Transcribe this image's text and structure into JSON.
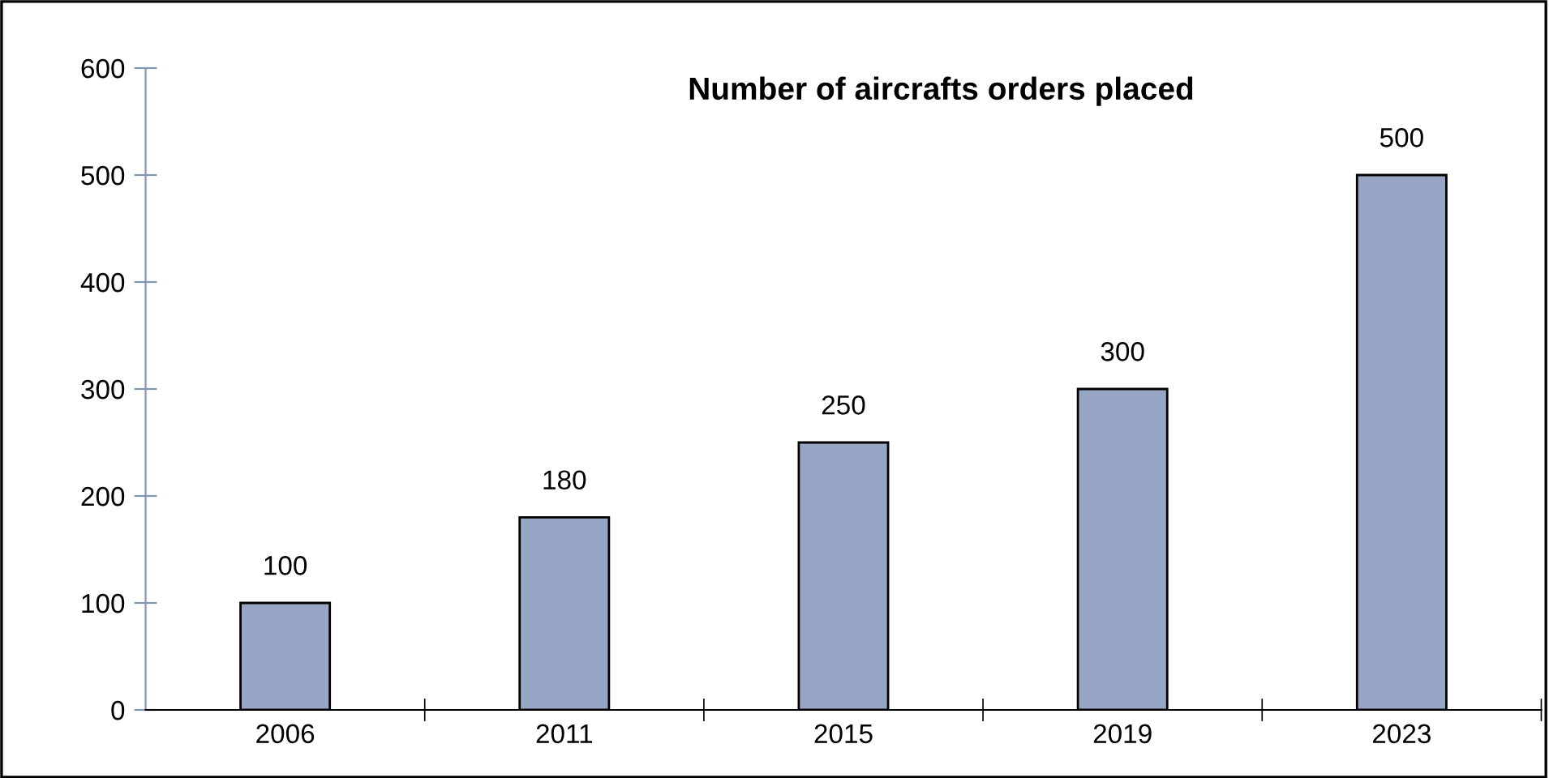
{
  "chart_data": {
    "type": "bar",
    "title": "Number of aircrafts orders placed",
    "categories": [
      "2006",
      "2011",
      "2015",
      "2019",
      "2023"
    ],
    "values": [
      100,
      180,
      250,
      300,
      500
    ],
    "color": "#97a6c4",
    "ylim": [
      0,
      600
    ],
    "yticks": [
      0,
      100,
      200,
      300,
      400,
      500,
      600
    ],
    "data_labels": true,
    "grid": false,
    "legend": false
  }
}
